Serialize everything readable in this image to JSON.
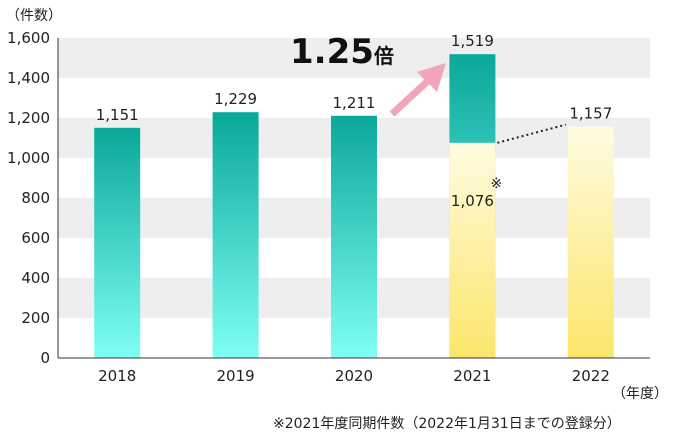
{
  "chart_data": {
    "type": "bar",
    "y_unit_label": "（件数）",
    "x_unit_label": "（年度）",
    "categories": [
      "2018",
      "2019",
      "2020",
      "2021",
      "2022"
    ],
    "values": [
      1151,
      1229,
      1211,
      1519,
      1157
    ],
    "value_labels": [
      "1,151",
      "1,229",
      "1,211",
      "1,519",
      "1,157"
    ],
    "same_period_2021": {
      "category": "2021",
      "value": 1076,
      "label": "1,076",
      "mark": "※"
    },
    "y_ticks": [
      {
        "value": 0,
        "label": "0"
      },
      {
        "value": 200,
        "label": "200"
      },
      {
        "value": 400,
        "label": "400"
      },
      {
        "value": 600,
        "label": "600"
      },
      {
        "value": 800,
        "label": "800"
      },
      {
        "value": 1000,
        "label": "1,000"
      },
      {
        "value": 1200,
        "label": "1,200"
      },
      {
        "value": 1400,
        "label": "1,400"
      },
      {
        "value": 1600,
        "label": "1,600"
      }
    ],
    "ylim": [
      0,
      1600
    ],
    "annotation": {
      "number": "1.25",
      "suffix": "倍"
    },
    "footnote": "※2021年度同期件数（2022年1月31日までの登録分）",
    "colors": {
      "teal_top": "#0aa89a",
      "teal_bottom": "#7ffff5",
      "yellow_top": "#fffbe0",
      "yellow_bottom": "#fbe66a",
      "arrow": "#f0a6b8",
      "band": "#eeeeee"
    }
  }
}
